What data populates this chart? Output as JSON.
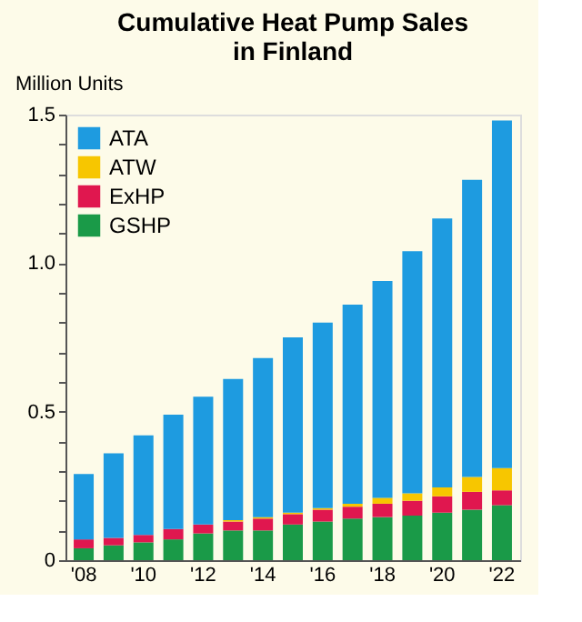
{
  "chart_data": {
    "type": "bar",
    "title": "Cumulative Heat Pump Sales\nin Finland",
    "ylabel": "Million Units",
    "stacked": true,
    "categories": [
      "'08",
      null,
      "'10",
      null,
      "'12",
      null,
      "'14",
      null,
      "'16",
      null,
      "'18",
      null,
      "'20",
      null,
      "'22"
    ],
    "series": [
      {
        "name": "GSHP",
        "color": "#1a9a48",
        "values": [
          0.04,
          0.05,
          0.06,
          0.07,
          0.09,
          0.1,
          0.1,
          0.12,
          0.13,
          0.14,
          0.145,
          0.15,
          0.16,
          0.17,
          0.185
        ]
      },
      {
        "name": "ExHP",
        "color": "#e0174f",
        "values": [
          0.03,
          0.025,
          0.025,
          0.035,
          0.03,
          0.03,
          0.04,
          0.035,
          0.04,
          0.04,
          0.045,
          0.05,
          0.055,
          0.06,
          0.05
        ]
      },
      {
        "name": "ATW",
        "color": "#f7c600",
        "values": [
          0,
          0,
          0,
          0,
          0,
          0.005,
          0.005,
          0.005,
          0.005,
          0.01,
          0.02,
          0.025,
          0.03,
          0.05,
          0.075
        ]
      },
      {
        "name": "ATA",
        "color": "#1e9be0",
        "values": [
          0.22,
          0.285,
          0.335,
          0.385,
          0.43,
          0.475,
          0.535,
          0.59,
          0.625,
          0.67,
          0.73,
          0.815,
          0.905,
          1.0,
          1.17
        ]
      }
    ],
    "ylim": [
      0,
      1.5
    ],
    "yticks": [
      0,
      {
        "value": 0.1,
        "label": null
      },
      {
        "value": 0.2,
        "label": null
      },
      {
        "value": 0.3,
        "label": null
      },
      {
        "value": 0.4,
        "label": null
      },
      0.5,
      {
        "value": 0.6,
        "label": null
      },
      {
        "value": 0.7,
        "label": null
      },
      {
        "value": 0.8,
        "label": null
      },
      {
        "value": 0.9,
        "label": null
      },
      {
        "value": 1.0,
        "label": "1.0"
      },
      {
        "value": 1.1,
        "label": null
      },
      {
        "value": 1.2,
        "label": null
      },
      {
        "value": 1.3,
        "label": null
      },
      {
        "value": 1.4,
        "label": null
      },
      1.5
    ],
    "grid": false,
    "legend": "top left"
  }
}
